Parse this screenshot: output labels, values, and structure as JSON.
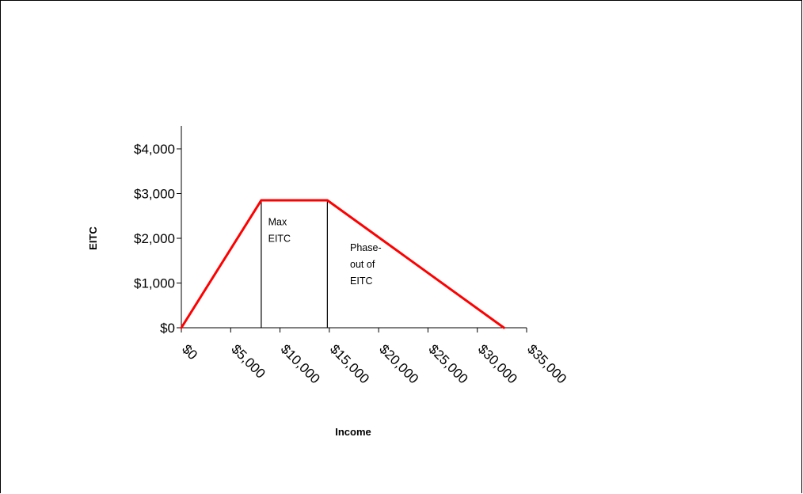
{
  "chart_data": {
    "type": "line",
    "xlabel": "Income",
    "ylabel": "EITC",
    "xlim": [
      0,
      35000
    ],
    "ylim": [
      0,
      4000
    ],
    "x_ticks": [
      0,
      5000,
      10000,
      15000,
      20000,
      25000,
      30000,
      35000
    ],
    "x_tick_labels": [
      "$0",
      "$5,000",
      "$10,000",
      "$15,000",
      "$20,000",
      "$25,000",
      "$30,000",
      "$35,000"
    ],
    "y_ticks": [
      0,
      1000,
      2000,
      3000,
      4000
    ],
    "y_tick_labels": [
      "$0",
      "$1,000",
      "$2,000",
      "$3,000",
      "$4,000"
    ],
    "grid": false,
    "legend": "none",
    "series": [
      {
        "color": "#ff0000",
        "x": [
          0,
          8100,
          14800,
          32700
        ],
        "y": [
          0,
          2850,
          2850,
          0
        ]
      }
    ],
    "vlines": [
      8100,
      14800
    ],
    "annotations": [
      {
        "id": "max",
        "lines": [
          "Max",
          "EITC"
        ],
        "x": 8800,
        "y": 2290
      },
      {
        "id": "phaseout",
        "lines": [
          "Phase-",
          "out of",
          "EITC"
        ],
        "x": 17100,
        "y": 1720
      }
    ]
  }
}
